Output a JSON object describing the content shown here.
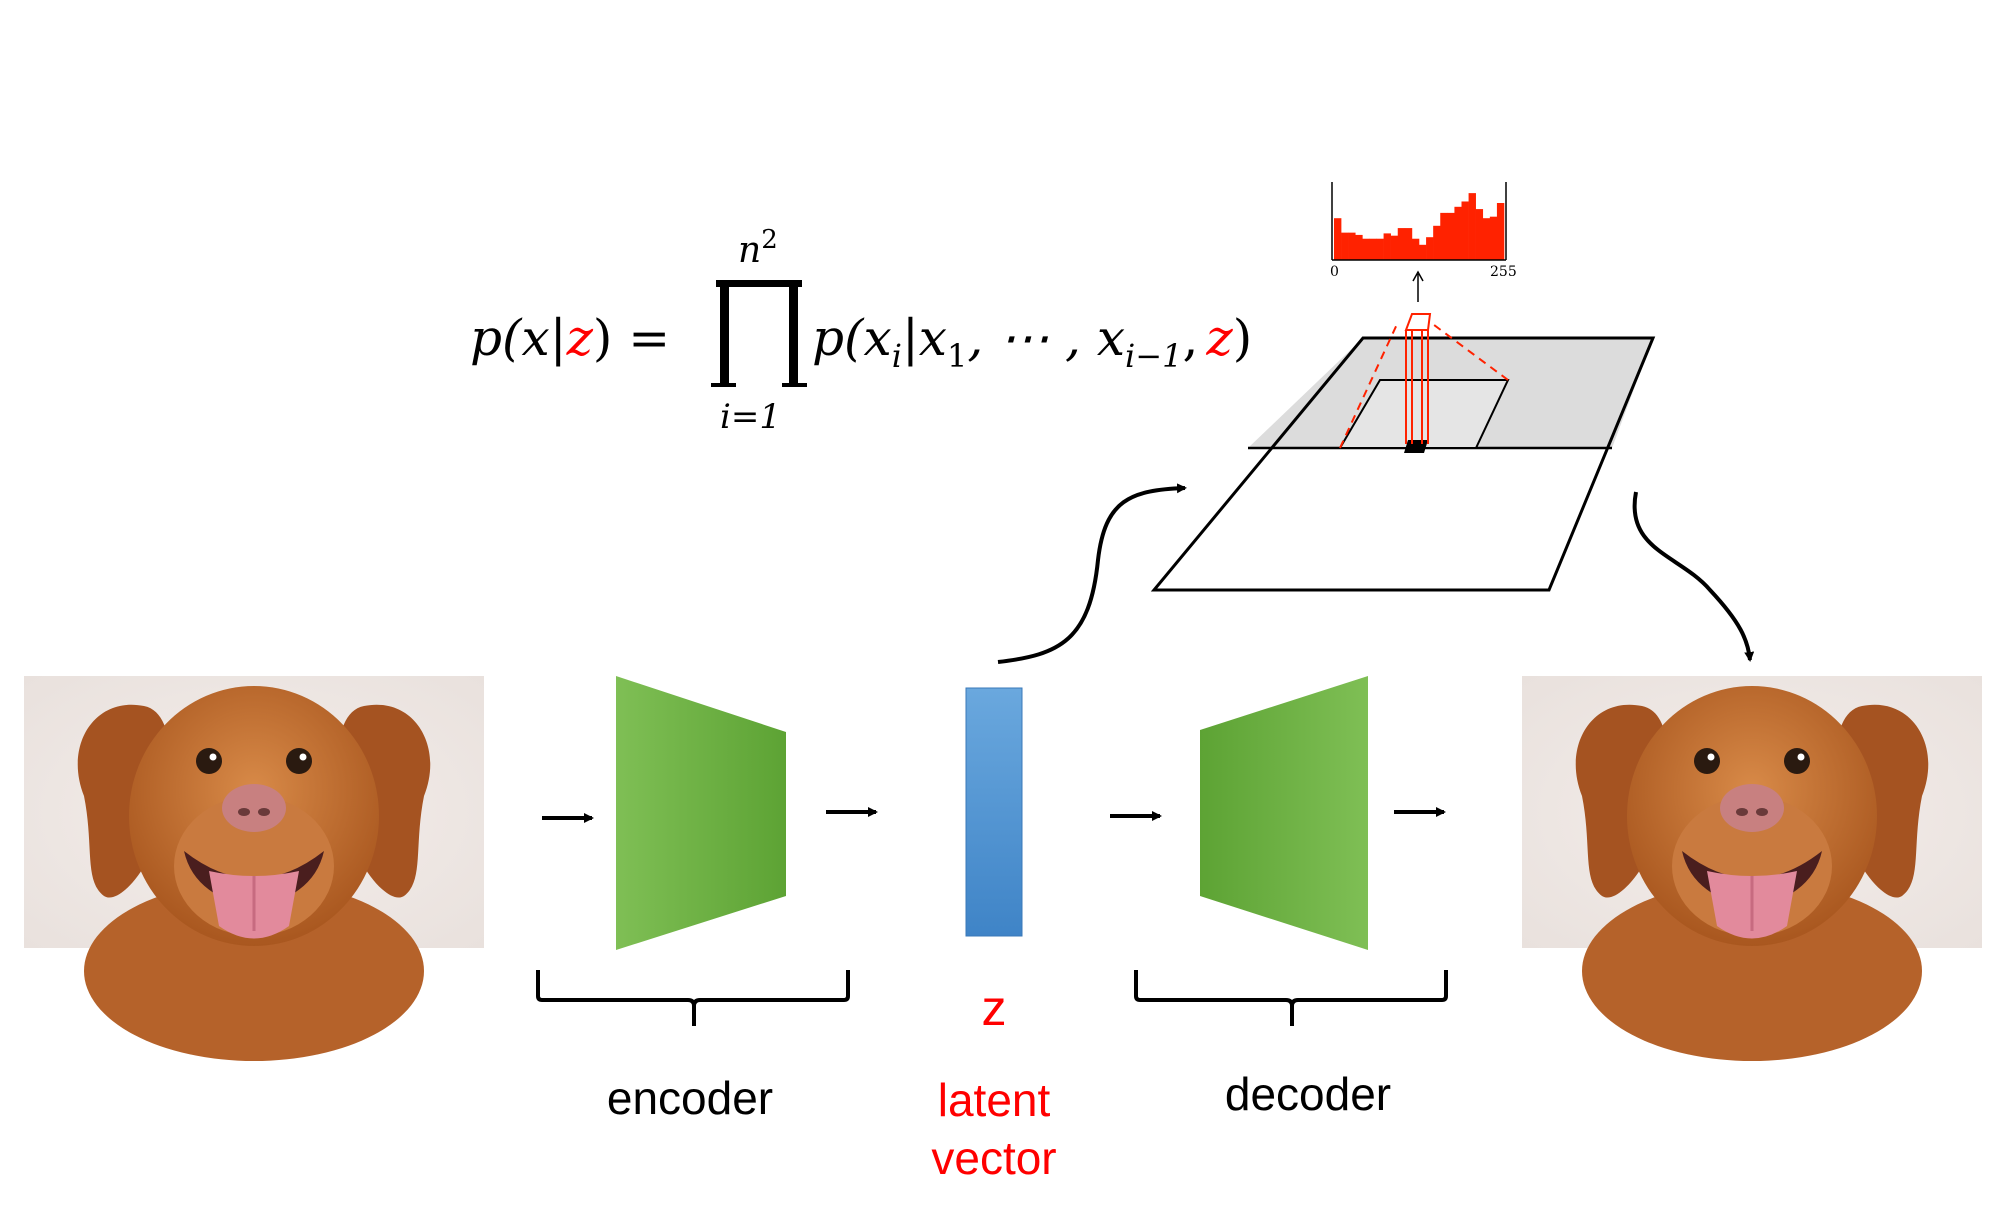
{
  "formula": {
    "lhs": "p(x|",
    "lhs_z": "z",
    "lhs_close": ") =",
    "prod_top_n": "n",
    "prod_top_exp": "2",
    "prod_bottom": "i=1",
    "rhs_open": "p(x",
    "rhs_sub_i": "i",
    "rhs_mid": "|x",
    "rhs_sub_1": "1",
    "rhs_dots": ", ⋯ , x",
    "rhs_sub_im1": "i−1",
    "rhs_comma": ",",
    "rhs_z": "z",
    "rhs_close": ")"
  },
  "histogram": {
    "tick_min": "0",
    "tick_max": "255",
    "bar_heights": [
      0.55,
      0.36,
      0.36,
      0.33,
      0.28,
      0.28,
      0.28,
      0.35,
      0.32,
      0.42,
      0.42,
      0.28,
      0.2,
      0.3,
      0.45,
      0.62,
      0.62,
      0.7,
      0.77,
      0.88,
      0.67,
      0.55,
      0.57,
      0.75
    ],
    "bar_color": "#ff2200"
  },
  "labels": {
    "encoder": "encoder",
    "decoder": "decoder",
    "z": "z",
    "latent_line1": "latent",
    "latent_line2": "vector"
  },
  "colors": {
    "accent_red": "#ff0000",
    "encoder_green": "#6aae3f",
    "latent_blue": "#4a8fd0"
  },
  "images": {
    "input": "dog-input-photo",
    "output": "dog-output-photo"
  }
}
